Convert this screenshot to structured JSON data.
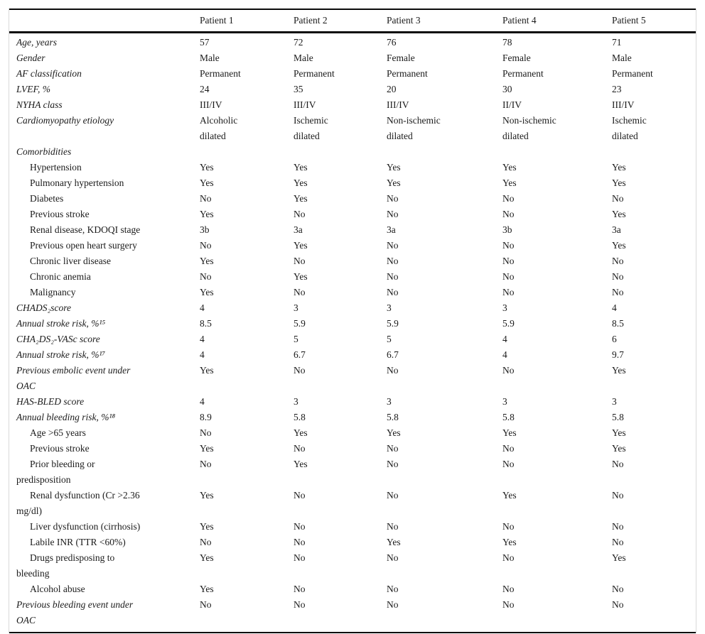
{
  "table": {
    "columns": [
      "",
      "Patient 1",
      "Patient 2",
      "Patient 3",
      "Patient 4",
      "Patient 5"
    ],
    "rows": [
      {
        "label": "Age, years",
        "type": "top",
        "values": [
          "57",
          "72",
          "76",
          "78",
          "71"
        ]
      },
      {
        "label": "Gender",
        "type": "top",
        "values": [
          "Male",
          "Male",
          "Female",
          "Female",
          "Male"
        ]
      },
      {
        "label": "AF classification",
        "type": "top",
        "values": [
          "Permanent",
          "Permanent",
          "Permanent",
          "Permanent",
          "Permanent"
        ]
      },
      {
        "label": "LVEF, %",
        "type": "top",
        "values": [
          "24",
          "35",
          "20",
          "30",
          "23"
        ]
      },
      {
        "label": "NYHA class",
        "type": "top",
        "values": [
          "III/IV",
          "III/IV",
          "III/IV",
          "II/IV",
          "III/IV"
        ]
      },
      {
        "label": "Cardiomyopathy etiology",
        "type": "top",
        "values": [
          "Alcoholic\ndilated",
          "Ischemic\ndilated",
          "Non-ischemic\ndilated",
          "Non-ischemic\ndilated",
          "Ischemic\ndilated"
        ]
      },
      {
        "label": "Comorbidities",
        "type": "section",
        "values": [
          "",
          "",
          "",
          "",
          ""
        ]
      },
      {
        "label": "Hypertension",
        "type": "sub",
        "values": [
          "Yes",
          "Yes",
          "Yes",
          "Yes",
          "Yes"
        ]
      },
      {
        "label": "Pulmonary hypertension",
        "type": "sub",
        "values": [
          "Yes",
          "Yes",
          "Yes",
          "Yes",
          "Yes"
        ]
      },
      {
        "label": "Diabetes",
        "type": "sub",
        "values": [
          "No",
          "Yes",
          "No",
          "No",
          "No"
        ]
      },
      {
        "label": "Previous stroke",
        "type": "sub",
        "values": [
          "Yes",
          "No",
          "No",
          "No",
          "Yes"
        ]
      },
      {
        "label": "Renal disease, KDOQI stage",
        "type": "sub",
        "values": [
          "3b",
          "3a",
          "3a",
          "3b",
          "3a"
        ]
      },
      {
        "label": "Previous open heart surgery",
        "type": "sub",
        "values": [
          "No",
          "Yes",
          "No",
          "No",
          "Yes"
        ]
      },
      {
        "label": "Chronic liver disease",
        "type": "sub",
        "values": [
          "Yes",
          "No",
          "No",
          "No",
          "No"
        ]
      },
      {
        "label": "Chronic anemia",
        "type": "sub",
        "values": [
          "No",
          "Yes",
          "No",
          "No",
          "No"
        ]
      },
      {
        "label": "Malignancy",
        "type": "sub",
        "values": [
          "Yes",
          "No",
          "No",
          "No",
          "No"
        ]
      },
      {
        "label": "CHADS₂score",
        "type": "top",
        "values": [
          "4",
          "3",
          "3",
          "3",
          "4"
        ]
      },
      {
        "label": "Annual stroke risk, %¹⁵",
        "type": "top",
        "values": [
          "8.5",
          "5.9",
          "5.9",
          "5.9",
          "8.5"
        ]
      },
      {
        "label": "CHA₂DS₂-VASc score",
        "type": "top",
        "values": [
          "4",
          "5",
          "5",
          "4",
          "6"
        ]
      },
      {
        "label": "Annual stroke risk, %¹⁷",
        "type": "top",
        "values": [
          "4",
          "6.7",
          "6.7",
          "4",
          "9.7"
        ]
      },
      {
        "label": "Previous embolic event under\nOAC",
        "type": "top",
        "values": [
          "Yes",
          "No",
          "No",
          "No",
          "Yes"
        ]
      },
      {
        "label": "HAS-BLED score",
        "type": "top",
        "values": [
          "4",
          "3",
          "3",
          "3",
          "3"
        ]
      },
      {
        "label": "Annual bleeding risk, %¹⁸",
        "type": "top",
        "values": [
          "8.9",
          "5.8",
          "5.8",
          "5.8",
          "5.8"
        ]
      },
      {
        "label": "Age >65 years",
        "type": "sub",
        "values": [
          "No",
          "Yes",
          "Yes",
          "Yes",
          "Yes"
        ]
      },
      {
        "label": "Previous stroke",
        "type": "sub",
        "values": [
          "Yes",
          "No",
          "No",
          "No",
          "Yes"
        ]
      },
      {
        "label": "Prior bleeding or\npredisposition",
        "type": "sub",
        "values": [
          "No",
          "Yes",
          "No",
          "No",
          "No"
        ]
      },
      {
        "label": "Renal dysfunction (Cr >2.36\nmg/dl)",
        "type": "sub",
        "values": [
          "Yes",
          "No",
          "No",
          "Yes",
          "No"
        ]
      },
      {
        "label": "Liver dysfunction (cirrhosis)",
        "type": "sub",
        "values": [
          "Yes",
          "No",
          "No",
          "No",
          "No"
        ]
      },
      {
        "label": "Labile INR (TTR <60%)",
        "type": "sub",
        "values": [
          "No",
          "No",
          "Yes",
          "Yes",
          "No"
        ]
      },
      {
        "label": "Drugs predisposing to\nbleeding",
        "type": "sub",
        "values": [
          "Yes",
          "No",
          "No",
          "No",
          "Yes"
        ]
      },
      {
        "label": "Alcohol abuse",
        "type": "sub",
        "values": [
          "Yes",
          "No",
          "No",
          "No",
          "No"
        ]
      },
      {
        "label": "Previous bleeding event under\nOAC",
        "type": "top",
        "values": [
          "No",
          "No",
          "No",
          "No",
          "No"
        ]
      }
    ]
  }
}
